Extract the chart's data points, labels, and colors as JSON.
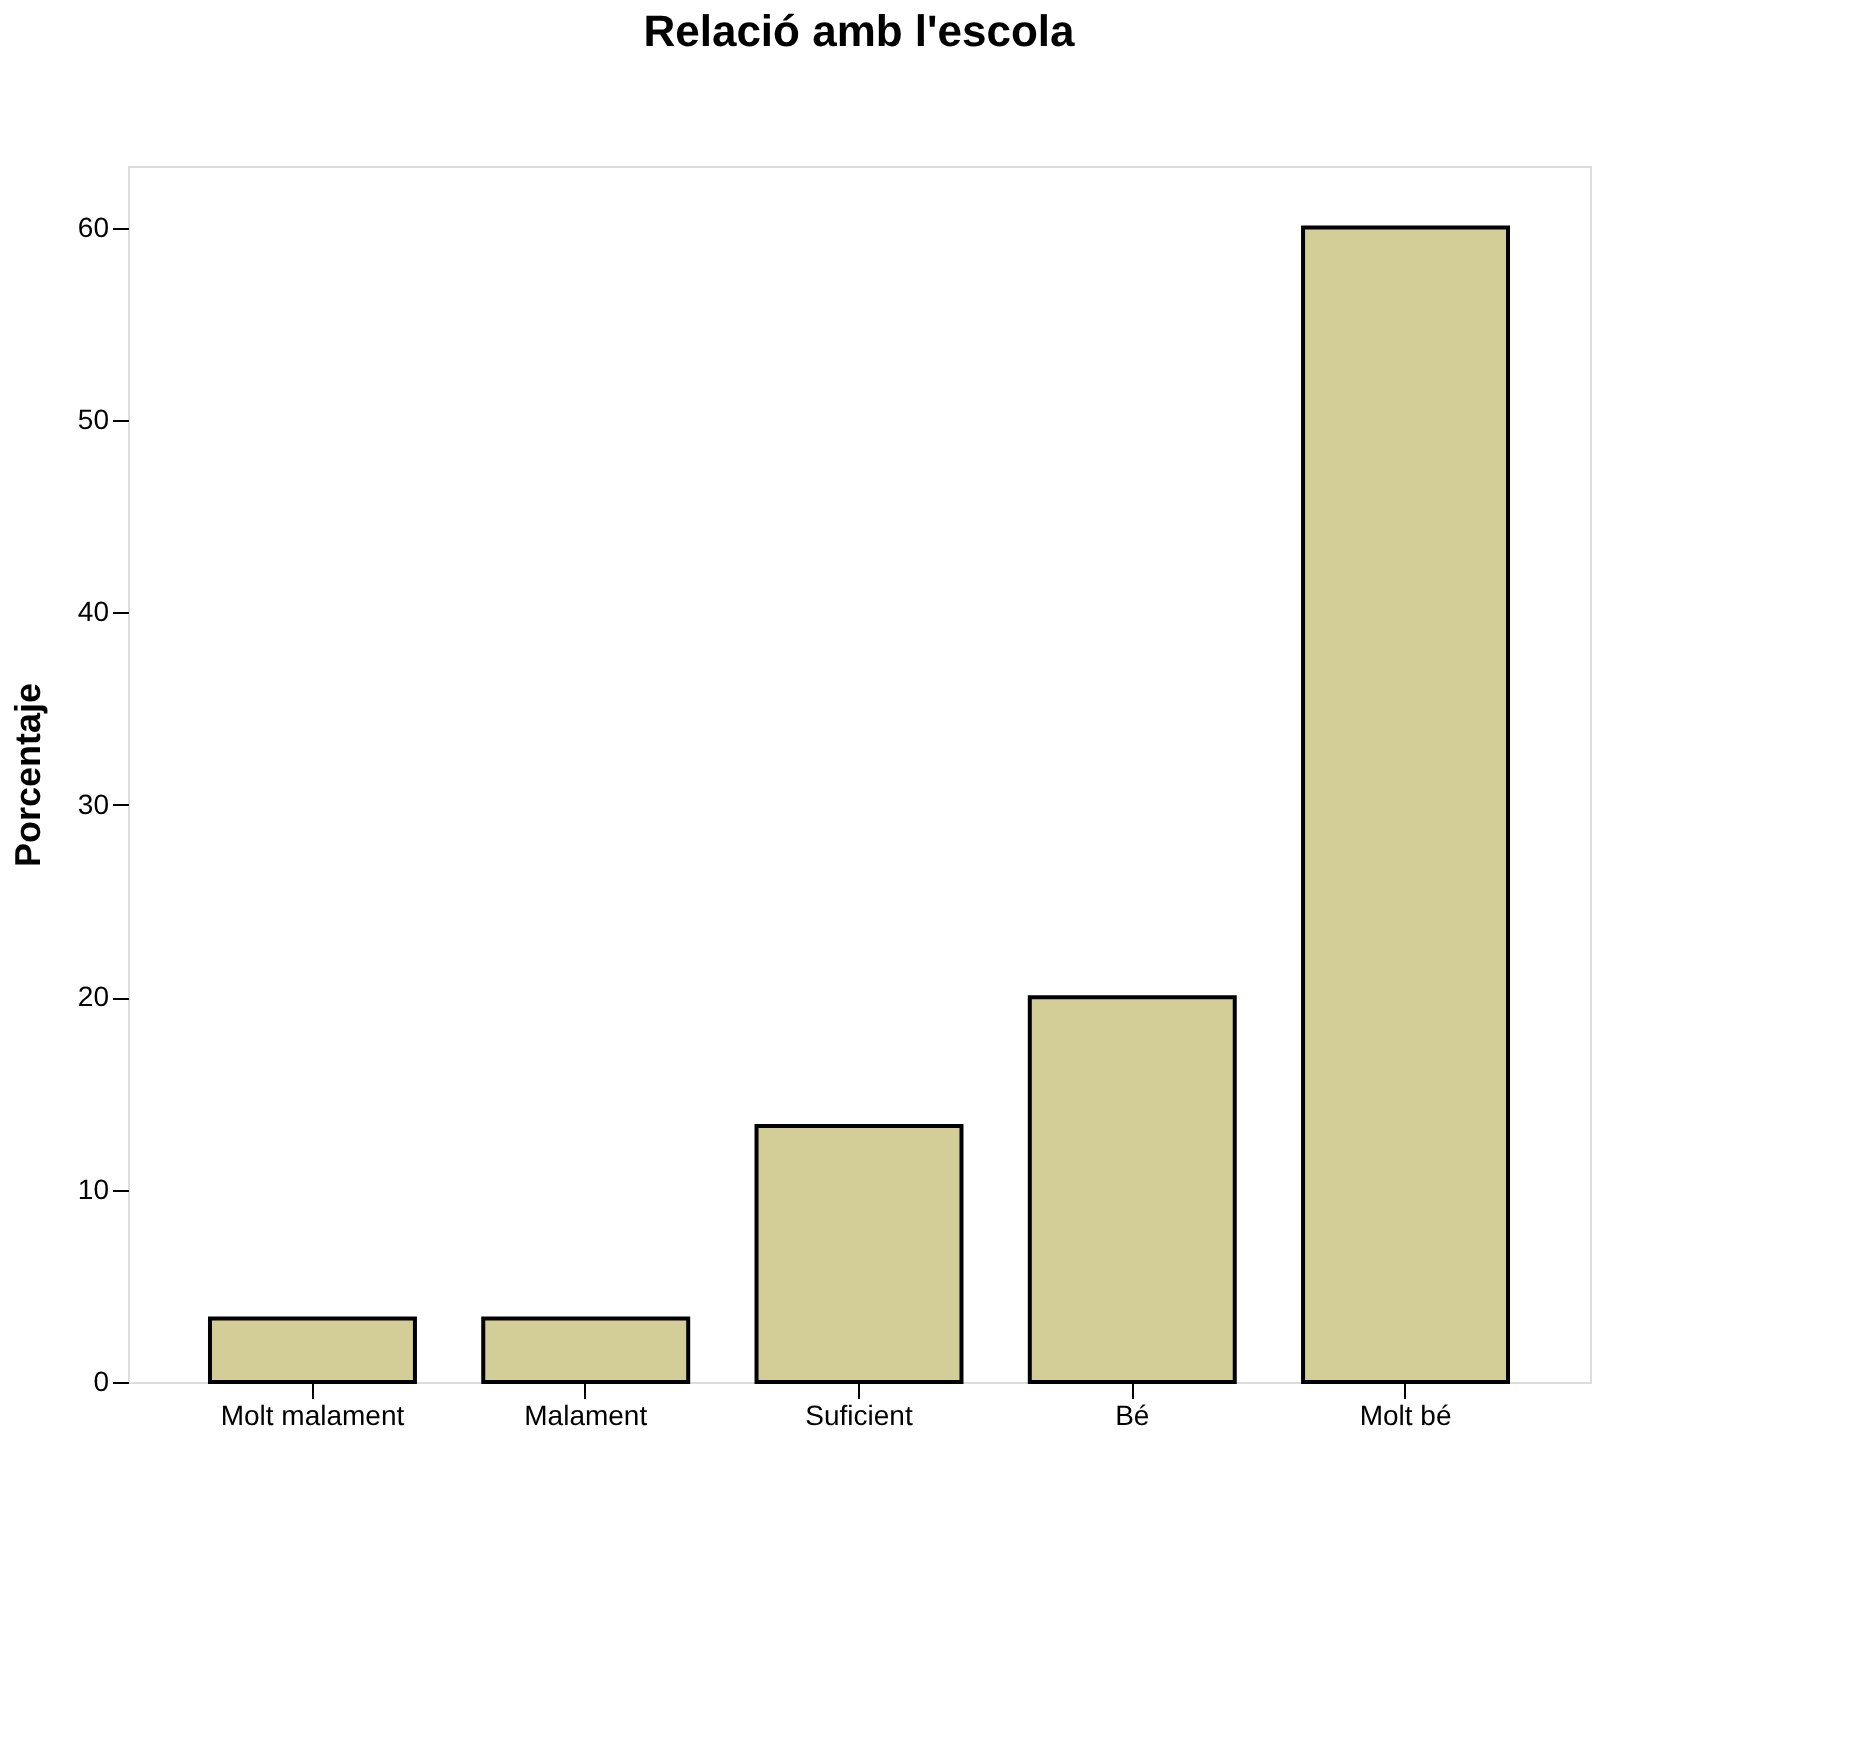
{
  "chart_data": {
    "type": "bar",
    "title": "Relació amb l'escola",
    "ylabel": "Porcentaje",
    "categories": [
      "Molt malament",
      "Malament",
      "Suficient",
      "Bé",
      "Molt bé"
    ],
    "values": [
      3.3,
      3.3,
      13.3,
      20,
      60
    ],
    "color": "#d3ce97",
    "ylim": [
      0,
      63.2
    ],
    "yticks": [
      0,
      10,
      20,
      30,
      40,
      50,
      60
    ],
    "grid": false
  }
}
